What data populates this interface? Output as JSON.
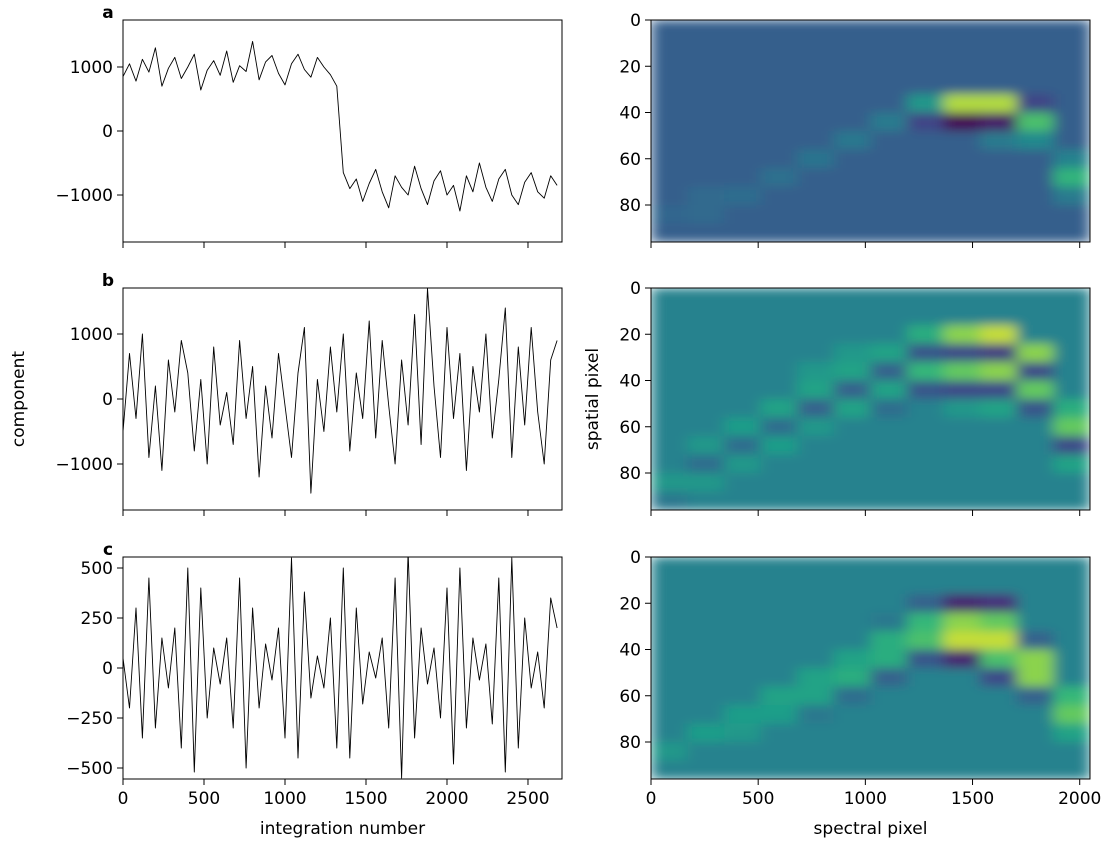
{
  "chart_data": [
    {
      "type": "line",
      "panel": "a",
      "color": "#000000",
      "xlim": [
        0,
        2710
      ],
      "ylim": [
        -1734,
        1734
      ],
      "xticks": [
        0,
        500,
        1000,
        1500,
        2000,
        2500
      ],
      "xticklabels": false,
      "yticks": [
        {
          "value": -1000,
          "label": "−1000"
        },
        0,
        1000
      ],
      "x": [
        0,
        40,
        80,
        120,
        160,
        200,
        240,
        280,
        320,
        360,
        400,
        440,
        480,
        520,
        560,
        600,
        640,
        680,
        720,
        760,
        800,
        840,
        880,
        920,
        960,
        1000,
        1040,
        1080,
        1120,
        1160,
        1200,
        1240,
        1280,
        1320,
        1360,
        1400,
        1440,
        1480,
        1520,
        1560,
        1600,
        1640,
        1680,
        1720,
        1760,
        1800,
        1840,
        1880,
        1920,
        1960,
        2000,
        2040,
        2080,
        2120,
        2160,
        2200,
        2240,
        2280,
        2320,
        2360,
        2400,
        2440,
        2480,
        2520,
        2560,
        2600,
        2640,
        2680
      ],
      "values": [
        850,
        1050,
        780,
        1120,
        920,
        1300,
        700,
        980,
        1150,
        820,
        1000,
        1200,
        640,
        950,
        1100,
        870,
        1250,
        760,
        1020,
        930,
        1400,
        800,
        1080,
        1180,
        900,
        720,
        1050,
        1200,
        960,
        840,
        1150,
        1000,
        880,
        700,
        -650,
        -900,
        -750,
        -1100,
        -820,
        -600,
        -950,
        -1200,
        -700,
        -880,
        -1000,
        -550,
        -900,
        -1150,
        -780,
        -620,
        -1000,
        -850,
        -1250,
        -700,
        -950,
        -500,
        -880,
        -1100,
        -750,
        -600,
        -1000,
        -1150,
        -800,
        -650,
        -950,
        -1050,
        -700,
        -850
      ]
    },
    {
      "type": "line",
      "panel": "b",
      "color": "#000000",
      "ylabel": "component",
      "xlim": [
        0,
        2710
      ],
      "ylim": [
        -1708,
        1708
      ],
      "xticks": [
        0,
        500,
        1000,
        1500,
        2000,
        2500
      ],
      "xticklabels": false,
      "yticks": [
        {
          "value": -1000,
          "label": "−1000"
        },
        0,
        1000
      ],
      "x": [
        0,
        40,
        80,
        120,
        160,
        200,
        240,
        280,
        320,
        360,
        400,
        440,
        480,
        520,
        560,
        600,
        640,
        680,
        720,
        760,
        800,
        840,
        880,
        920,
        960,
        1000,
        1040,
        1080,
        1120,
        1160,
        1200,
        1240,
        1280,
        1320,
        1360,
        1400,
        1440,
        1480,
        1520,
        1560,
        1600,
        1640,
        1680,
        1720,
        1760,
        1800,
        1840,
        1880,
        1920,
        1960,
        2000,
        2040,
        2080,
        2120,
        2160,
        2200,
        2240,
        2280,
        2320,
        2360,
        2400,
        2440,
        2480,
        2520,
        2560,
        2600,
        2640,
        2680
      ],
      "values": [
        -500,
        700,
        -300,
        1000,
        -900,
        200,
        -1100,
        600,
        -200,
        900,
        400,
        -800,
        300,
        -1000,
        800,
        -400,
        100,
        -700,
        900,
        -300,
        500,
        -1200,
        200,
        -600,
        700,
        -100,
        -900,
        400,
        1100,
        -1450,
        300,
        -500,
        800,
        -200,
        1000,
        -800,
        400,
        -300,
        1200,
        -600,
        900,
        -100,
        -1000,
        600,
        -400,
        1300,
        -700,
        1700,
        200,
        -900,
        1100,
        -300,
        700,
        -1100,
        500,
        -200,
        1000,
        -600,
        300,
        1400,
        -900,
        800,
        -400,
        1100,
        -200,
        -1000,
        600,
        900
      ]
    },
    {
      "type": "line",
      "panel": "c",
      "color": "#000000",
      "xlabel": "integration number",
      "xlim": [
        0,
        2710
      ],
      "ylim": [
        -555,
        555
      ],
      "xticks": [
        0,
        500,
        1000,
        1500,
        2000,
        2500
      ],
      "xticklabels": true,
      "yticks": [
        {
          "value": -500,
          "label": "−500"
        },
        {
          "value": -250,
          "label": "−250"
        },
        0,
        250,
        500
      ],
      "x": [
        0,
        40,
        80,
        120,
        160,
        200,
        240,
        280,
        320,
        360,
        400,
        440,
        480,
        520,
        560,
        600,
        640,
        680,
        720,
        760,
        800,
        840,
        880,
        920,
        960,
        1000,
        1040,
        1080,
        1120,
        1160,
        1200,
        1240,
        1280,
        1320,
        1360,
        1400,
        1440,
        1480,
        1520,
        1560,
        1600,
        1640,
        1680,
        1720,
        1760,
        1800,
        1840,
        1880,
        1920,
        1960,
        2000,
        2040,
        2080,
        2120,
        2160,
        2200,
        2240,
        2280,
        2320,
        2360,
        2400,
        2440,
        2480,
        2520,
        2560,
        2600,
        2640,
        2680
      ],
      "values": [
        50,
        -200,
        300,
        -350,
        450,
        -300,
        150,
        -100,
        200,
        -400,
        500,
        -520,
        400,
        -250,
        100,
        -80,
        150,
        -300,
        450,
        -500,
        300,
        -200,
        120,
        -60,
        200,
        -350,
        550,
        -450,
        380,
        -150,
        60,
        -100,
        250,
        -400,
        500,
        -450,
        300,
        -180,
        80,
        -50,
        150,
        -300,
        450,
        -550,
        580,
        -350,
        200,
        -80,
        100,
        -250,
        400,
        -480,
        500,
        -300,
        150,
        -60,
        120,
        -280,
        450,
        -520,
        550,
        -400,
        250,
        -100,
        80,
        -200,
        350,
        200
      ]
    },
    {
      "type": "heatmap",
      "colormap": "viridis",
      "clim": [
        -1,
        2
      ],
      "xlim": [
        0,
        2048
      ],
      "ylim": [
        96,
        0
      ],
      "xticks": [
        0,
        500,
        1000,
        1500,
        2000
      ],
      "xticklabels": false,
      "yticks": [
        0,
        20,
        40,
        60,
        80
      ],
      "z": [
        [
          0,
          0,
          0,
          0,
          0,
          0,
          0,
          0,
          0,
          0,
          0,
          0
        ],
        [
          0,
          0,
          0,
          0,
          0,
          0,
          0,
          0,
          0,
          0,
          0,
          0
        ],
        [
          0,
          0,
          0,
          0,
          0,
          0,
          0,
          0,
          0,
          0,
          0,
          0
        ],
        [
          0,
          0,
          0,
          0,
          0,
          0,
          0,
          0,
          0,
          0,
          0,
          0
        ],
        [
          0,
          0,
          0,
          0,
          0,
          0,
          0,
          0.8,
          1.8,
          1.8,
          -0.3,
          0
        ],
        [
          0,
          0,
          0,
          0,
          0,
          0,
          0.4,
          -0.3,
          -1,
          -0.8,
          1.4,
          0
        ],
        [
          0,
          0,
          0,
          0,
          0,
          0.35,
          0,
          0,
          0,
          0.4,
          0.6,
          0
        ],
        [
          0,
          0,
          0,
          0,
          0.3,
          0,
          0,
          0,
          0,
          0,
          0,
          0.5
        ],
        [
          0,
          0,
          0,
          0.25,
          0,
          0,
          0,
          0,
          0,
          0,
          0,
          1.2
        ],
        [
          0,
          0.15,
          0.2,
          0,
          0,
          0,
          0,
          0,
          0,
          0,
          0,
          0.4
        ],
        [
          0.1,
          0.15,
          0,
          0,
          0,
          0,
          0,
          0,
          0,
          0,
          0,
          0
        ],
        [
          0,
          0,
          0,
          0,
          0,
          0,
          0,
          0,
          0,
          0,
          0,
          0
        ]
      ]
    },
    {
      "type": "heatmap",
      "colormap": "viridis",
      "clim": [
        -1,
        1
      ],
      "ylabel": "spatial pixel",
      "xlim": [
        0,
        2048
      ],
      "ylim": [
        96,
        0
      ],
      "xticks": [
        0,
        500,
        1000,
        1500,
        2000
      ],
      "xticklabels": false,
      "yticks": [
        0,
        20,
        40,
        60,
        80
      ],
      "z": [
        [
          0,
          0,
          0,
          0,
          0,
          0,
          0,
          0,
          0,
          0,
          0,
          0
        ],
        [
          0,
          0,
          0,
          0,
          0,
          0,
          0,
          0,
          0,
          0,
          0,
          0
        ],
        [
          0,
          0,
          0,
          0,
          0,
          0,
          0,
          0.4,
          0.8,
          0.9,
          0,
          0
        ],
        [
          0,
          0,
          0,
          0,
          0,
          0.2,
          0.3,
          -0.4,
          -0.5,
          -0.6,
          0.8,
          0
        ],
        [
          0,
          0,
          0,
          0,
          0.2,
          0.3,
          -0.3,
          0.5,
          0.7,
          0.8,
          -0.5,
          0
        ],
        [
          0,
          0,
          0,
          0,
          0.3,
          -0.3,
          0.3,
          -0.4,
          -0.5,
          -0.5,
          0.7,
          0
        ],
        [
          0,
          0,
          0,
          0.3,
          -0.3,
          0.3,
          -0.2,
          0,
          0.2,
          0.3,
          -0.4,
          0.4
        ],
        [
          0,
          0,
          0.25,
          -0.2,
          0.2,
          0,
          0,
          0,
          0,
          0,
          0,
          0.7
        ],
        [
          0,
          0.2,
          -0.2,
          0.25,
          0,
          0,
          0,
          0,
          0,
          0,
          0,
          -0.5
        ],
        [
          0,
          -0.2,
          0.2,
          0,
          0,
          0,
          0,
          0,
          0,
          0,
          0,
          0.3
        ],
        [
          0.2,
          0.2,
          0,
          0,
          0,
          0,
          0,
          0,
          0,
          0,
          0,
          0
        ],
        [
          -0.1,
          0,
          0,
          0,
          0,
          0,
          0,
          0,
          0,
          0,
          0,
          0
        ]
      ]
    },
    {
      "type": "heatmap",
      "colormap": "viridis",
      "clim": [
        -1,
        1
      ],
      "xlabel": "spectral pixel",
      "xlim": [
        0,
        2048
      ],
      "ylim": [
        96,
        0
      ],
      "xticks": [
        0,
        500,
        1000,
        1500,
        2000
      ],
      "xticklabels": true,
      "yticks": [
        0,
        20,
        40,
        60,
        80
      ],
      "z": [
        [
          0,
          0,
          0,
          0,
          0,
          0,
          0,
          0,
          0,
          0,
          0,
          0
        ],
        [
          0,
          0,
          0,
          0,
          0,
          0,
          0,
          0,
          0,
          0,
          0,
          0
        ],
        [
          0,
          0,
          0,
          0,
          0,
          0,
          0,
          -0.3,
          -0.8,
          -0.7,
          0,
          0
        ],
        [
          0,
          0,
          0,
          0,
          0,
          0,
          -0.1,
          0.5,
          0.8,
          0.7,
          0,
          0
        ],
        [
          0,
          0,
          0,
          0,
          0,
          0,
          0.4,
          0.6,
          0.9,
          0.9,
          -0.3,
          0
        ],
        [
          0,
          0,
          0,
          0,
          0,
          0.3,
          0.4,
          -0.4,
          -0.8,
          0.6,
          0.8,
          0
        ],
        [
          0,
          0,
          0,
          0,
          0.3,
          0.4,
          -0.3,
          0,
          0,
          -0.5,
          0.8,
          0
        ],
        [
          0,
          0,
          0,
          0.3,
          0.3,
          -0.2,
          0,
          0,
          0,
          0,
          -0.3,
          0.5
        ],
        [
          0,
          0,
          0.25,
          0.25,
          -0.1,
          0,
          0,
          0,
          0,
          0,
          0,
          0.7
        ],
        [
          0,
          0.25,
          0.2,
          0,
          0,
          0,
          0,
          0,
          0,
          0,
          0,
          0.3
        ],
        [
          0.2,
          0,
          0,
          0,
          0,
          0,
          0,
          0,
          0,
          0,
          0,
          0
        ],
        [
          0,
          0,
          0,
          0,
          0,
          0,
          0,
          0,
          0,
          0,
          0,
          0
        ]
      ]
    }
  ]
}
